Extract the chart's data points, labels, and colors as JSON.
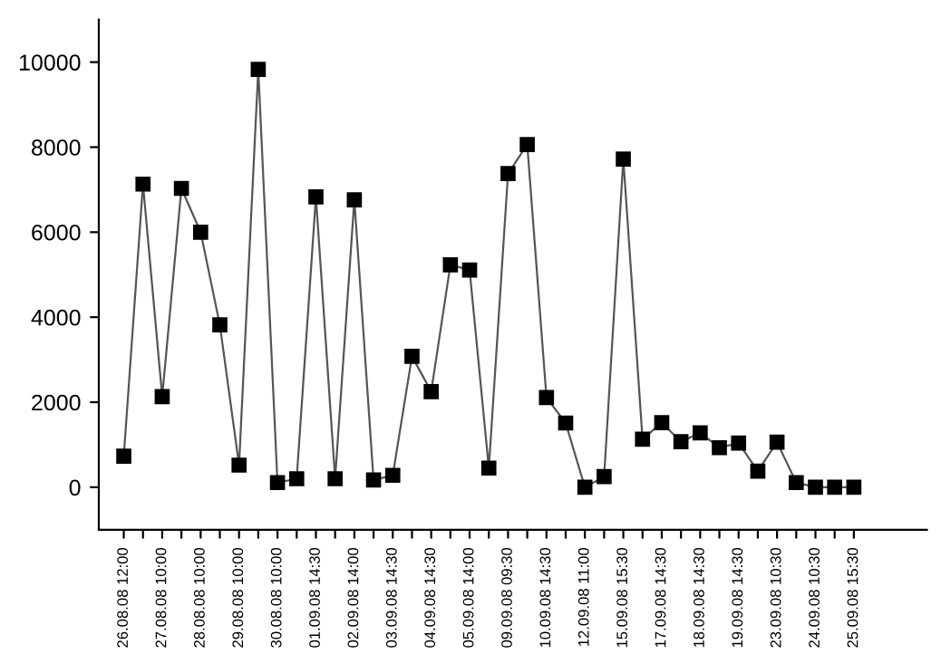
{
  "chart_data": {
    "type": "line",
    "categories": [
      "26.08.08 12:00",
      null,
      "27.08.08 10:00",
      null,
      "28.08.08 10:00",
      null,
      "29.08.08 10:00",
      null,
      "30.08.08 10:00",
      null,
      "01.09.08 14:30",
      null,
      "02.09.08 14:00",
      null,
      "03.09.08 14:30",
      null,
      "04.09.08 14:30",
      null,
      "05.09.08 14:00",
      null,
      "09.09.08 09:30",
      null,
      "10.09.08 14:30",
      null,
      "12.09.08 11:00",
      null,
      "15.09.08 15:30",
      null,
      "17.09.08 14:30",
      null,
      "18.09.08 14:30",
      null,
      "19.09.08 14:30",
      null,
      "23.09.08 10:30",
      null,
      "24.09.08 10:30",
      null,
      "25.09.08 15:30"
    ],
    "series": [
      {
        "color": "#000000",
        "values": [
          730,
          7130,
          2130,
          7030,
          6000,
          3820,
          520,
          9830,
          110,
          200,
          6830,
          200,
          6760,
          170,
          280,
          3080,
          2250,
          5230,
          5110,
          450,
          7380,
          8060,
          2110,
          1510,
          0,
          250,
          7720,
          1130,
          1520,
          1070,
          1280,
          930,
          1040,
          380,
          1060,
          110,
          0,
          0,
          0
        ]
      }
    ],
    "ylim": [
      -1000,
      11000
    ],
    "yticks": [
      0,
      2000,
      4000,
      6000,
      8000,
      10000
    ],
    "grid": false,
    "legend": false,
    "marker": "square",
    "line_style": "solid"
  }
}
